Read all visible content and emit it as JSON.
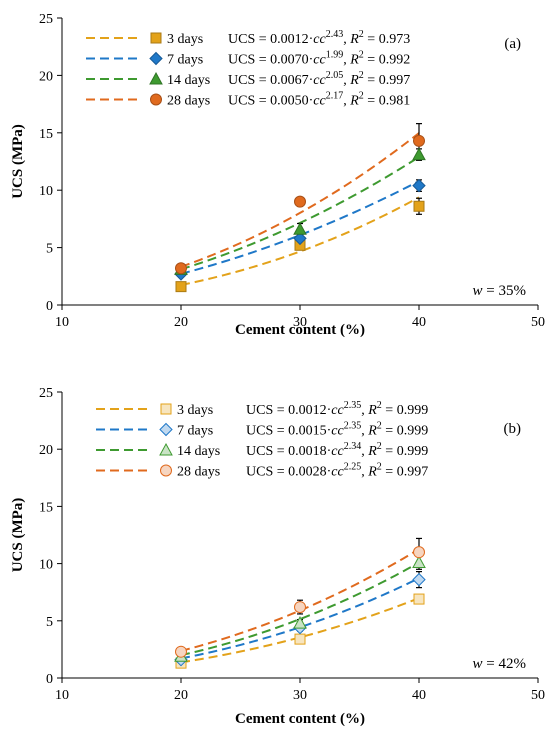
{
  "chart_data": [
    {
      "type": "scatter",
      "panel_label": "(a)",
      "annotation_italic": "w",
      "annotation_rest": " = 35%",
      "xlabel": "Cement content (%)",
      "ylabel": "UCS (MPa)",
      "xlim": [
        10,
        50
      ],
      "ylim": [
        0,
        25
      ],
      "xticks": [
        10,
        20,
        30,
        40,
        50
      ],
      "yticks": [
        0,
        5,
        10,
        15,
        20,
        25
      ],
      "grid": false,
      "legend_position": "top-left",
      "filled_markers": true,
      "x": [
        20,
        30,
        40
      ],
      "series": [
        {
          "name": "3 days",
          "marker": "square",
          "color": "#E3A21A",
          "values": [
            1.6,
            5.2,
            8.6
          ],
          "errors": [
            0.2,
            0.4,
            0.7
          ],
          "fit": {
            "a": 0.0012,
            "b": 2.43,
            "r2": 0.973,
            "coef_text": "UCS = 0.0012·",
            "exp_text": "2.43",
            "r2_text": "0.973"
          }
        },
        {
          "name": "7 days",
          "marker": "diamond",
          "color": "#1F78C8",
          "values": [
            2.7,
            5.8,
            10.4
          ],
          "errors": [
            0.2,
            0.4,
            0.5
          ],
          "fit": {
            "a": 0.007,
            "b": 1.99,
            "r2": 0.992,
            "coef_text": "UCS = 0.0070·",
            "exp_text": "1.99",
            "r2_text": "0.992"
          }
        },
        {
          "name": "14 days",
          "marker": "triangle",
          "color": "#3E9A30",
          "values": [
            3.1,
            6.6,
            13.1
          ],
          "errors": [
            0.2,
            0.5,
            0.5
          ],
          "fit": {
            "a": 0.0067,
            "b": 2.05,
            "r2": 0.997,
            "coef_text": "UCS = 0.0067·",
            "exp_text": "2.05",
            "r2_text": "0.997"
          }
        },
        {
          "name": "28 days",
          "marker": "circle",
          "color": "#E06A1E",
          "values": [
            3.2,
            9.0,
            14.3
          ],
          "errors": [
            0.2,
            0.4,
            1.5
          ],
          "fit": {
            "a": 0.005,
            "b": 2.17,
            "r2": 0.981,
            "coef_text": "UCS = 0.0050·",
            "exp_text": "2.17",
            "r2_text": "0.981"
          }
        }
      ]
    },
    {
      "type": "scatter",
      "panel_label": "(b)",
      "annotation_italic": "w",
      "annotation_rest": " = 42%",
      "xlabel": "Cement content (%)",
      "ylabel": "UCS (MPa)",
      "xlim": [
        10,
        50
      ],
      "ylim": [
        0,
        25
      ],
      "xticks": [
        10,
        20,
        30,
        40,
        50
      ],
      "yticks": [
        0,
        5,
        10,
        15,
        20,
        25
      ],
      "grid": false,
      "legend_position": "top-left",
      "filled_markers": false,
      "x": [
        20,
        30,
        40
      ],
      "series": [
        {
          "name": "3 days",
          "marker": "square",
          "color": "#E3A21A",
          "values": [
            1.3,
            3.4,
            6.9
          ],
          "errors": [
            0.15,
            0.2,
            0.3
          ],
          "fit": {
            "a": 0.0012,
            "b": 2.35,
            "r2": 0.999,
            "coef_text": "UCS = 0.0012·",
            "exp_text": "2.35",
            "r2_text": "0.999"
          }
        },
        {
          "name": "7 days",
          "marker": "diamond",
          "color": "#1F78C8",
          "values": [
            1.6,
            4.4,
            8.6
          ],
          "errors": [
            0.15,
            0.3,
            0.7
          ],
          "fit": {
            "a": 0.0015,
            "b": 2.35,
            "r2": 0.999,
            "coef_text": "UCS = 0.0015·",
            "exp_text": "2.35",
            "r2_text": "0.999"
          }
        },
        {
          "name": "14 days",
          "marker": "triangle",
          "color": "#3E9A30",
          "values": [
            1.9,
            4.8,
            10.1
          ],
          "errors": [
            0.15,
            0.3,
            0.6
          ],
          "fit": {
            "a": 0.0018,
            "b": 2.34,
            "r2": 0.999,
            "coef_text": "UCS = 0.0018·",
            "exp_text": "2.34",
            "r2_text": "0.999"
          }
        },
        {
          "name": "28 days",
          "marker": "circle",
          "color": "#E06A1E",
          "values": [
            2.3,
            6.2,
            11.0
          ],
          "errors": [
            0.2,
            0.6,
            1.2
          ],
          "fit": {
            "a": 0.0028,
            "b": 2.25,
            "r2": 0.997,
            "coef_text": "UCS = 0.0028·",
            "exp_text": "2.25",
            "r2_text": "0.997"
          }
        }
      ]
    }
  ]
}
